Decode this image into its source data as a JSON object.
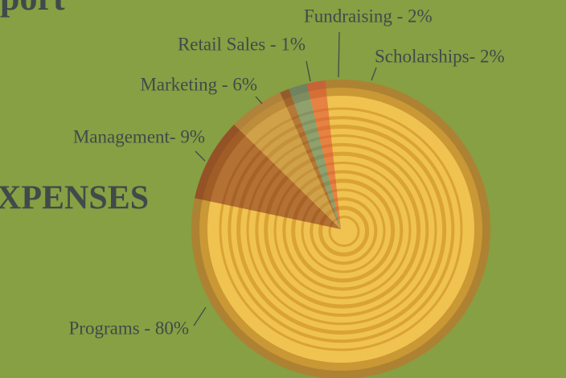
{
  "header": "port",
  "chart_data": {
    "type": "pie",
    "title": "XPENSES",
    "values": [
      9,
      6,
      1,
      2,
      2,
      80
    ],
    "value_labels": [
      "Management- 9%",
      "Marketing - 6%",
      "Retail Sales - 1%",
      "Fundraising - 2%",
      "Scholarships- 2%",
      "Programs - 80%"
    ],
    "colors": [
      "#8a3a22",
      "#b98a45",
      "#8c4a2a",
      "#4f8a80",
      "#e0583a",
      "#f2c44e"
    ]
  }
}
